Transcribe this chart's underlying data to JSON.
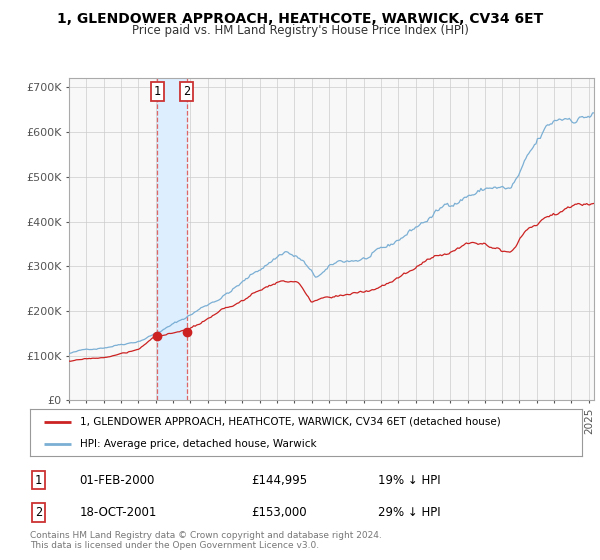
{
  "title": "1, GLENDOWER APPROACH, HEATHCOTE, WARWICK, CV34 6ET",
  "subtitle": "Price paid vs. HM Land Registry's House Price Index (HPI)",
  "legend_line1": "1, GLENDOWER APPROACH, HEATHCOTE, WARWICK, CV34 6ET (detached house)",
  "legend_line2": "HPI: Average price, detached house, Warwick",
  "sale1_date": "01-FEB-2000",
  "sale1_price": "£144,995",
  "sale1_hpi": "19% ↓ HPI",
  "sale1_x": 2000.083,
  "sale1_y": 144995,
  "sale2_date": "18-OCT-2001",
  "sale2_price": "£153,000",
  "sale2_hpi": "29% ↓ HPI",
  "sale2_x": 2001.792,
  "sale2_y": 153000,
  "vline1_x": 2000.083,
  "vline2_x": 2001.792,
  "hpi_color": "#7bafd4",
  "price_color": "#cc2222",
  "sale_dot_color": "#cc2222",
  "shade_color": "#ddeeff",
  "vline_color": "#dd6666",
  "grid_color": "#cccccc",
  "background_color": "#ffffff",
  "plot_bg_color": "#f8f8f8",
  "ylim": [
    0,
    720000
  ],
  "xlim_start": 1995.0,
  "xlim_end": 2025.3,
  "footer": "Contains HM Land Registry data © Crown copyright and database right 2024.\nThis data is licensed under the Open Government Licence v3.0."
}
